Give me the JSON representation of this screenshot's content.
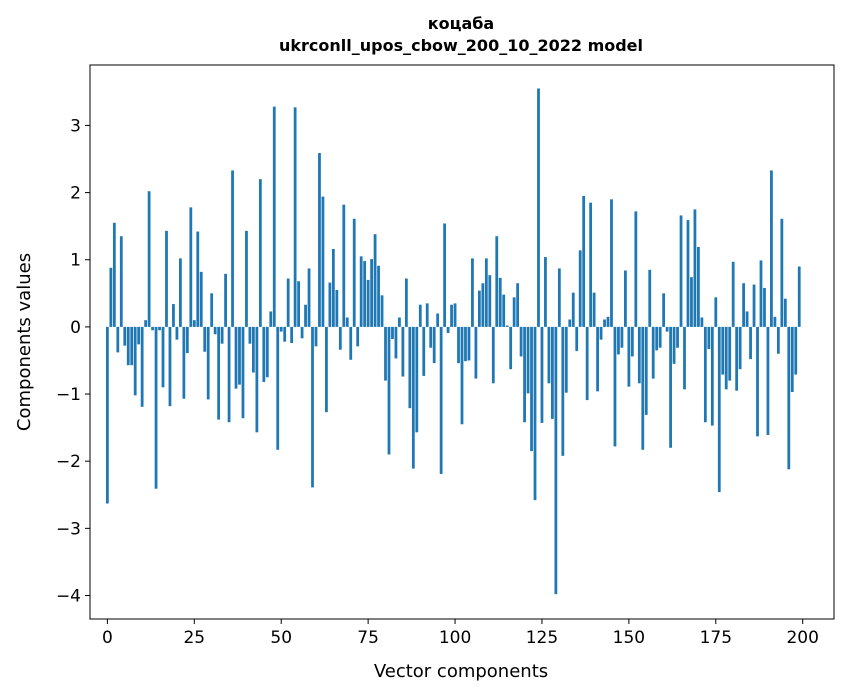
{
  "chart_data": {
    "type": "bar",
    "title_line1": "коцаба",
    "title_line2": "ukrconll_upos_cbow_200_10_2022 model",
    "xlabel": "Vector components",
    "ylabel": "Components values",
    "xlim": [
      -5,
      209
    ],
    "ylim": [
      -4.35,
      3.9
    ],
    "xticks": [
      0,
      25,
      50,
      75,
      100,
      125,
      150,
      175,
      200
    ],
    "yticks": [
      -4,
      -3,
      -2,
      -1,
      0,
      1,
      2,
      3
    ],
    "ytick_labels": [
      "−4",
      "−3",
      "−2",
      "−1",
      "0",
      "1",
      "2",
      "3"
    ],
    "grid": false,
    "bar_color": "#1f77b4",
    "x": [
      0,
      1,
      2,
      3,
      4,
      5,
      6,
      7,
      8,
      9,
      10,
      11,
      12,
      13,
      14,
      15,
      16,
      17,
      18,
      19,
      20,
      21,
      22,
      23,
      24,
      25,
      26,
      27,
      28,
      29,
      30,
      31,
      32,
      33,
      34,
      35,
      36,
      37,
      38,
      39,
      40,
      41,
      42,
      43,
      44,
      45,
      46,
      47,
      48,
      49,
      50,
      51,
      52,
      53,
      54,
      55,
      56,
      57,
      58,
      59,
      60,
      61,
      62,
      63,
      64,
      65,
      66,
      67,
      68,
      69,
      70,
      71,
      72,
      73,
      74,
      75,
      76,
      77,
      78,
      79,
      80,
      81,
      82,
      83,
      84,
      85,
      86,
      87,
      88,
      89,
      90,
      91,
      92,
      93,
      94,
      95,
      96,
      97,
      98,
      99,
      100,
      101,
      102,
      103,
      104,
      105,
      106,
      107,
      108,
      109,
      110,
      111,
      112,
      113,
      114,
      115,
      116,
      117,
      118,
      119,
      120,
      121,
      122,
      123,
      124,
      125,
      126,
      127,
      128,
      129,
      130,
      131,
      132,
      133,
      134,
      135,
      136,
      137,
      138,
      139,
      140,
      141,
      142,
      143,
      144,
      145,
      146,
      147,
      148,
      149,
      150,
      151,
      152,
      153,
      154,
      155,
      156,
      157,
      158,
      159,
      160,
      161,
      162,
      163,
      164,
      165,
      166,
      167,
      168,
      169,
      170,
      171,
      172,
      173,
      174,
      175,
      176,
      177,
      178,
      179,
      180,
      181,
      182,
      183,
      184,
      185,
      186,
      187,
      188,
      189,
      190,
      191,
      192,
      193,
      194,
      195,
      196,
      197,
      198,
      199
    ],
    "values": [
      -2.63,
      0.88,
      1.55,
      -0.38,
      1.35,
      -0.28,
      -0.57,
      -0.57,
      -1.02,
      -0.26,
      -1.19,
      0.1,
      2.02,
      -0.05,
      -2.41,
      -0.05,
      -0.9,
      1.43,
      -1.18,
      0.34,
      -0.19,
      1.02,
      -1.07,
      -0.39,
      1.78,
      0.1,
      1.42,
      0.82,
      -0.37,
      -1.08,
      0.5,
      -0.11,
      -1.38,
      -0.25,
      0.79,
      -1.42,
      2.33,
      -0.92,
      -0.86,
      -1.36,
      1.43,
      -0.25,
      -0.68,
      -1.57,
      2.2,
      -0.82,
      -0.75,
      0.23,
      3.28,
      -1.83,
      -0.07,
      -0.22,
      0.72,
      -0.24,
      3.27,
      0.68,
      -0.17,
      0.33,
      0.87,
      -2.39,
      -0.29,
      2.59,
      1.94,
      -1.27,
      0.66,
      1.16,
      0.55,
      -0.34,
      1.82,
      0.14,
      -0.49,
      1.61,
      -0.29,
      1.05,
      0.98,
      0.7,
      1.01,
      1.38,
      0.91,
      0.47,
      -0.8,
      -1.9,
      -0.18,
      -0.47,
      0.14,
      -0.74,
      0.72,
      -1.21,
      -2.11,
      -1.57,
      0.33,
      -0.73,
      0.35,
      -0.31,
      -0.54,
      0.2,
      -2.19,
      1.54,
      -0.09,
      0.33,
      0.35,
      -0.54,
      -1.45,
      -0.51,
      -0.5,
      1.02,
      -0.77,
      0.54,
      0.65,
      1.02,
      0.77,
      -0.84,
      1.35,
      0.73,
      0.48,
      0.02,
      -0.63,
      0.44,
      0.65,
      -0.44,
      -1.42,
      -0.99,
      -1.85,
      -2.58,
      3.55,
      -1.43,
      1.04,
      -0.84,
      -1.37,
      -3.98,
      0.87,
      -1.92,
      -0.98,
      0.11,
      0.51,
      -0.36,
      1.14,
      1.95,
      -1.09,
      1.85,
      0.51,
      -0.96,
      -0.19,
      0.11,
      0.15,
      1.9,
      -1.78,
      -0.41,
      -0.31,
      0.84,
      -0.89,
      -0.44,
      1.72,
      -0.84,
      -1.83,
      -1.31,
      0.85,
      -0.77,
      -0.35,
      -0.31,
      0.5,
      -0.07,
      -1.8,
      -0.55,
      -0.31,
      1.66,
      -0.93,
      1.59,
      0.74,
      1.75,
      1.19,
      0.14,
      -1.42,
      -0.33,
      -1.47,
      0.44,
      -2.46,
      -0.71,
      -0.93,
      -0.8,
      0.97,
      -0.95,
      -0.63,
      0.65,
      0.23,
      -0.48,
      0.63,
      -1.63,
      0.99,
      0.58,
      -1.61,
      2.33,
      0.15,
      -0.4,
      1.61,
      0.42,
      -2.12,
      -0.97,
      -0.71,
      0.9
    ]
  }
}
